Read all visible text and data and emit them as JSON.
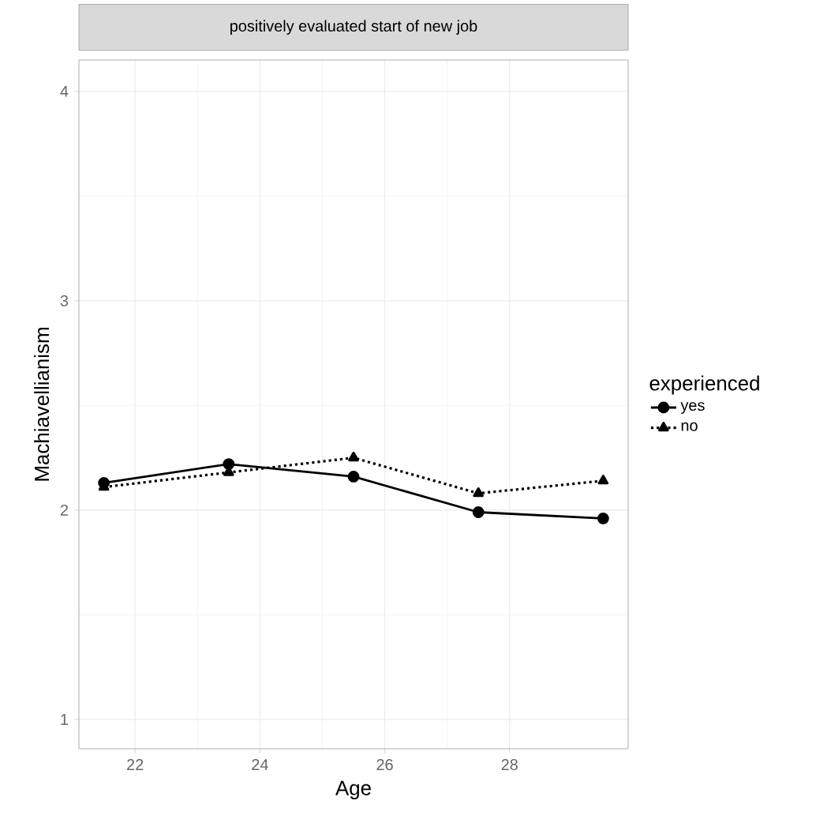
{
  "chart_data": {
    "type": "line",
    "title": "positively evaluated start of new job",
    "xlabel": "Age",
    "ylabel": "Machiavellianism",
    "legend_title": "experienced",
    "x": [
      21.5,
      23.5,
      25.5,
      27.5,
      29.5
    ],
    "series": [
      {
        "name": "yes",
        "color": "#000000",
        "marker": "circle",
        "line_style": "solid",
        "values": [
          2.13,
          2.22,
          2.16,
          1.99,
          1.96
        ]
      },
      {
        "name": "no",
        "color": "#000000",
        "marker": "triangle",
        "line_style": "dotted",
        "values": [
          2.11,
          2.18,
          2.25,
          2.08,
          2.14
        ]
      }
    ],
    "xlim": [
      21.1,
      29.9
    ],
    "ylim": [
      0.86,
      4.15
    ],
    "xticks": [
      22,
      24,
      26,
      28
    ],
    "yticks": [
      1,
      2,
      3,
      4
    ],
    "grid": true,
    "legend": "right"
  }
}
